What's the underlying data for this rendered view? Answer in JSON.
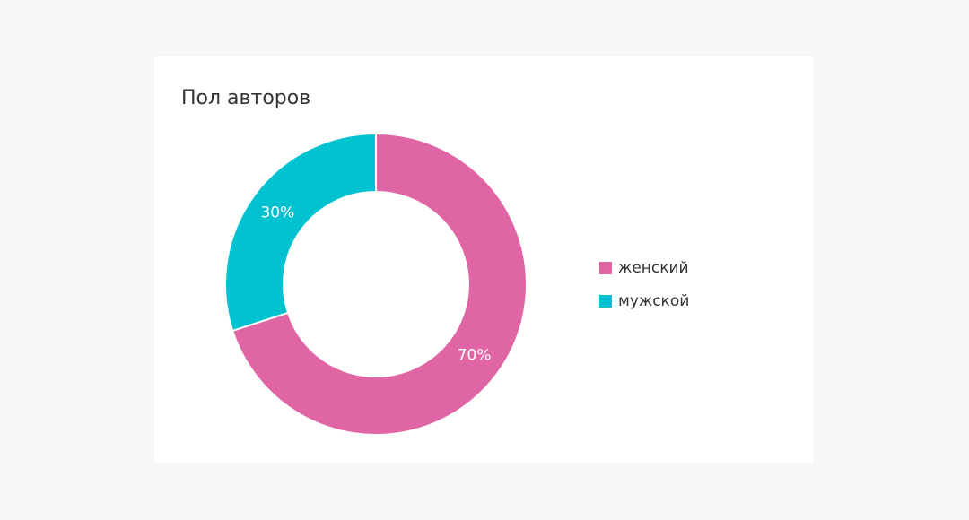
{
  "chart_data": {
    "type": "pie",
    "title": "Пол авторов",
    "categories": [
      "женский",
      "мужской"
    ],
    "values": [
      70,
      30
    ],
    "value_labels": [
      "70%",
      "30%"
    ],
    "colors": [
      "#e065a4",
      "#00c2d1"
    ],
    "legend": "right"
  }
}
